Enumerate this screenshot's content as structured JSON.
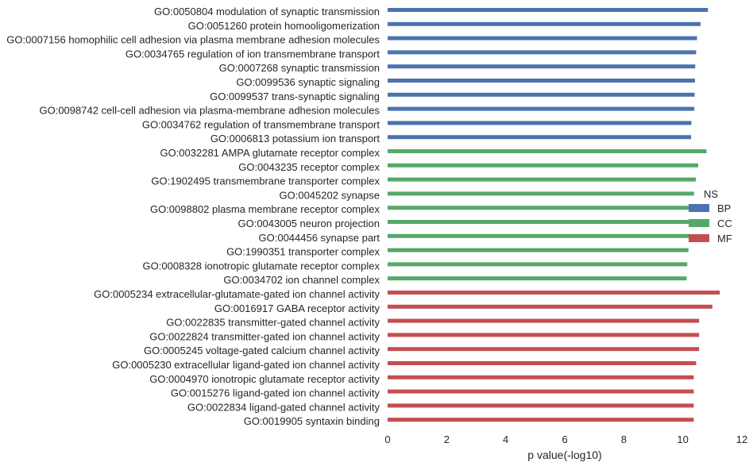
{
  "chart_data": {
    "type": "bar",
    "orientation": "horizontal",
    "xlabel": "p value(-log10)",
    "xlim": [
      0,
      12
    ],
    "xticks": [
      "0",
      "2",
      "4",
      "6",
      "8",
      "10",
      "12"
    ],
    "grid": false,
    "legend": {
      "title": "NS",
      "placement": "right",
      "entries": [
        {
          "name": "BP",
          "color": "#4c72b0"
        },
        {
          "name": "CC",
          "color": "#55a868"
        },
        {
          "name": "MF",
          "color": "#c44e52"
        }
      ]
    },
    "categories": [
      "GO:0050804 modulation of synaptic transmission",
      "GO:0051260 protein homooligomerization",
      "GO:0007156 homophilic cell adhesion via plasma membrane adhesion molecules",
      "GO:0034765 regulation of ion transmembrane transport",
      "GO:0007268 synaptic transmission",
      "GO:0099536 synaptic signaling",
      "GO:0099537 trans-synaptic signaling",
      "GO:0098742 cell-cell adhesion via plasma-membrane adhesion molecules",
      "GO:0034762 regulation of transmembrane transport",
      "GO:0006813 potassium ion transport",
      "GO:0032281 AMPA glutamate receptor complex",
      "GO:0043235 receptor complex",
      "GO:1902495 transmembrane transporter complex",
      "GO:0045202 synapse",
      "GO:0098802 plasma membrane receptor complex",
      "GO:0043005 neuron projection",
      "GO:0044456 synapse part",
      "GO:1990351 transporter complex",
      "GO:0008328 ionotropic glutamate receptor complex",
      "GO:0034702 ion channel complex",
      "GO:0005234 extracellular-glutamate-gated ion channel activity",
      "GO:0016917 GABA receptor activity",
      "GO:0022835 transmitter-gated channel activity",
      "GO:0022824 transmitter-gated ion channel activity",
      "GO:0005245 voltage-gated calcium channel activity",
      "GO:0005230 extracellular ligand-gated ion channel activity",
      "GO:0004970 ionotropic glutamate receptor activity",
      "GO:0015276 ligand-gated ion channel activity",
      "GO:0022834 ligand-gated channel activity",
      "GO:0019905 syntaxin binding"
    ],
    "groups": [
      "BP",
      "BP",
      "BP",
      "BP",
      "BP",
      "BP",
      "BP",
      "BP",
      "BP",
      "BP",
      "CC",
      "CC",
      "CC",
      "CC",
      "CC",
      "CC",
      "CC",
      "CC",
      "CC",
      "CC",
      "MF",
      "MF",
      "MF",
      "MF",
      "MF",
      "MF",
      "MF",
      "MF",
      "MF",
      "MF"
    ],
    "values": [
      10.85,
      10.6,
      10.48,
      10.45,
      10.42,
      10.41,
      10.4,
      10.39,
      10.29,
      10.28,
      10.8,
      10.52,
      10.44,
      10.38,
      10.35,
      10.3,
      10.29,
      10.19,
      10.15,
      10.13,
      11.25,
      11.0,
      10.55,
      10.55,
      10.55,
      10.45,
      10.37,
      10.37,
      10.37,
      10.37
    ]
  }
}
